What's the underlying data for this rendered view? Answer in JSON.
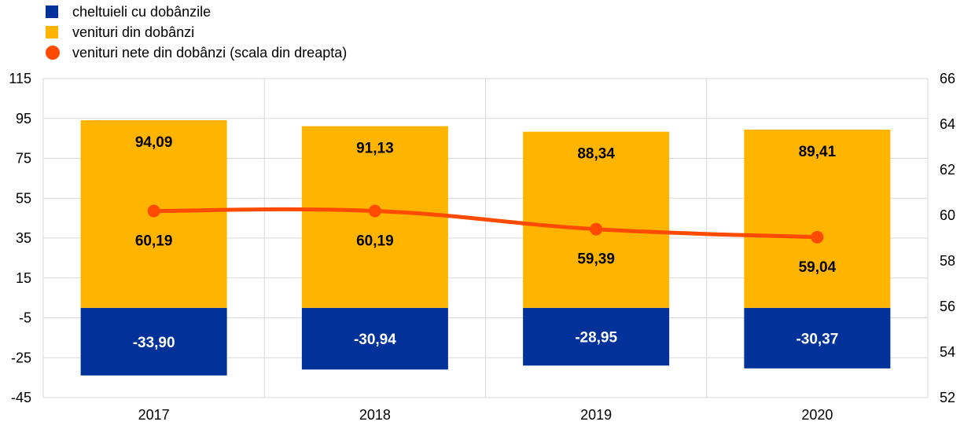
{
  "legend": {
    "items": [
      {
        "label": "cheltuieli cu dobânzile",
        "color": "#003299",
        "shape": "square"
      },
      {
        "label": "venituri din dobânzi",
        "color": "#FFB400",
        "shape": "square"
      },
      {
        "label": "venituri nete din dobânzi (scala din dreapta)",
        "color": "#FF4B00",
        "shape": "circle"
      }
    ]
  },
  "chart_data": {
    "type": "bar",
    "title": "",
    "categories": [
      "2017",
      "2018",
      "2019",
      "2020"
    ],
    "series": [
      {
        "name": "cheltuieli cu dobânzile",
        "type": "bar",
        "axis": "left",
        "color": "#003299",
        "values": [
          -33.9,
          -30.94,
          -28.95,
          -30.37
        ],
        "labels": [
          "-33,90",
          "-30,94",
          "-28,95",
          "-30,37"
        ]
      },
      {
        "name": "venituri din dobânzi",
        "type": "bar",
        "axis": "left",
        "color": "#FFB400",
        "values": [
          94.09,
          91.13,
          88.34,
          89.41
        ],
        "labels": [
          "94,09",
          "91,13",
          "88,34",
          "89,41"
        ]
      },
      {
        "name": "venituri nete din dobânzi (scala din dreapta)",
        "type": "line",
        "axis": "right",
        "color": "#FF4B00",
        "values": [
          60.19,
          60.19,
          59.39,
          59.04
        ],
        "labels": [
          "60,19",
          "60,19",
          "59,39",
          "59,04"
        ]
      }
    ],
    "y_left": {
      "min": -45,
      "max": 115,
      "ticks": [
        "115",
        "95",
        "75",
        "55",
        "35",
        "15",
        "-5",
        "-25",
        "-45"
      ]
    },
    "y_right": {
      "min": 52,
      "max": 66,
      "ticks": [
        "66",
        "64",
        "62",
        "60",
        "58",
        "56",
        "54",
        "52"
      ]
    },
    "grid": true,
    "legend_position": "top-left"
  }
}
